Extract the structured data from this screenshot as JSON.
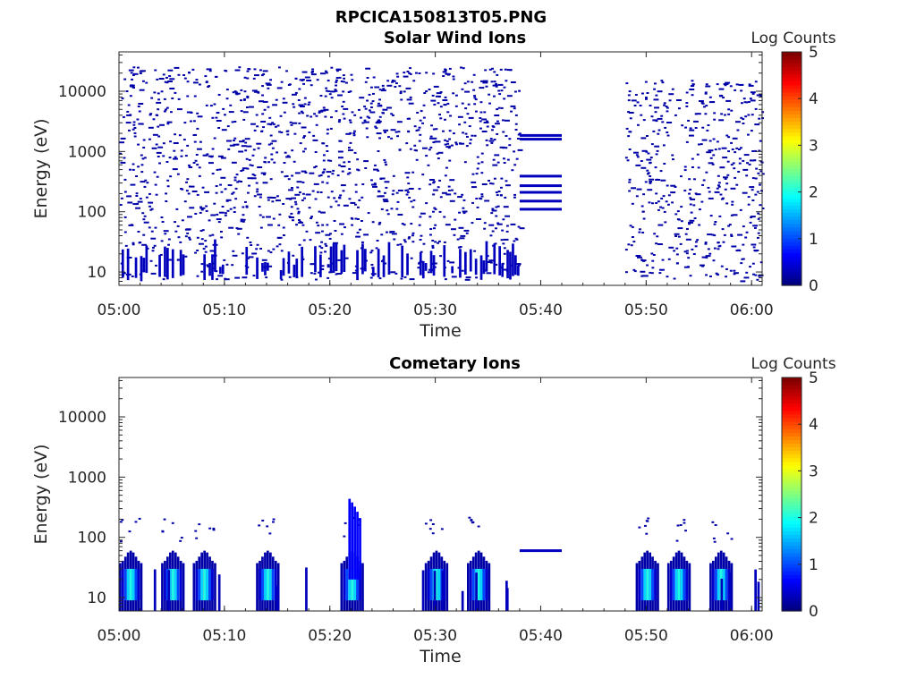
{
  "figure": {
    "title": "RPCICA150813T05.PNG"
  },
  "chart_data": [
    {
      "type": "heatmap",
      "title": "Solar Wind Ions",
      "xlabel": "Time",
      "ylabel": "Energy (eV)",
      "x_ticks": [
        "05:00",
        "05:10",
        "05:20",
        "05:30",
        "05:40",
        "05:50",
        "06:00"
      ],
      "x_range": [
        "05:00",
        "06:01"
      ],
      "y_scale": "log",
      "y_ticks": [
        "10",
        "100",
        "1000",
        "10000"
      ],
      "ylim": [
        6,
        45000
      ],
      "colorbar": {
        "label": "Log Counts",
        "ticks": [
          "0",
          "1",
          "2",
          "3",
          "4",
          "5"
        ],
        "range": [
          0,
          5
        ],
        "colormap": "jet"
      },
      "features": [
        {
          "name": "sparse low-count speckle",
          "time_range": [
            "05:00",
            "05:38"
          ],
          "energy_range": [
            7,
            25000
          ],
          "log_counts": 0.2
        },
        {
          "name": "low-energy streaks",
          "time_range": [
            "05:00",
            "05:38"
          ],
          "energy_range": [
            7,
            40
          ],
          "log_counts": 0.3
        },
        {
          "name": "horizontal lines",
          "time_range": [
            "05:38",
            "05:42"
          ],
          "energies": [
            110,
            150,
            210,
            270,
            390,
            1600,
            1850
          ],
          "log_counts": 0.3
        },
        {
          "name": "data gap",
          "time_range": [
            "05:42",
            "05:48"
          ]
        },
        {
          "name": "sparse low-count speckle",
          "time_range": [
            "05:48",
            "06:01"
          ],
          "energy_range": [
            7,
            15000
          ],
          "log_counts": 0.2
        }
      ]
    },
    {
      "type": "heatmap",
      "title": "Cometary Ions",
      "xlabel": "Time",
      "ylabel": "Energy (eV)",
      "x_ticks": [
        "05:00",
        "05:10",
        "05:20",
        "05:30",
        "05:40",
        "05:50",
        "06:00"
      ],
      "x_range": [
        "05:00",
        "06:01"
      ],
      "y_scale": "log",
      "y_ticks": [
        "10",
        "100",
        "1000",
        "10000"
      ],
      "ylim": [
        6,
        45000
      ],
      "colorbar": {
        "label": "Log Counts",
        "ticks": [
          "0",
          "1",
          "2",
          "3",
          "4",
          "5"
        ],
        "range": [
          0,
          5
        ],
        "colormap": "jet"
      },
      "features": [
        {
          "name": "ion bursts",
          "times": [
            "05:01",
            "05:05",
            "05:08",
            "05:14",
            "05:22",
            "05:30",
            "05:34",
            "05:50",
            "05:53",
            "05:57"
          ],
          "energy_range": [
            7,
            60
          ],
          "peak_log_counts": 2.0
        },
        {
          "name": "high-energy spike",
          "time": "05:22",
          "energy_range": [
            20,
            380
          ],
          "log_counts": 0.6
        },
        {
          "name": "horizontal line",
          "time_range": [
            "05:38",
            "05:42"
          ],
          "energy": 60,
          "log_counts": 0.3
        },
        {
          "name": "data gap",
          "time_range": [
            "05:42",
            "05:48"
          ]
        }
      ]
    }
  ]
}
